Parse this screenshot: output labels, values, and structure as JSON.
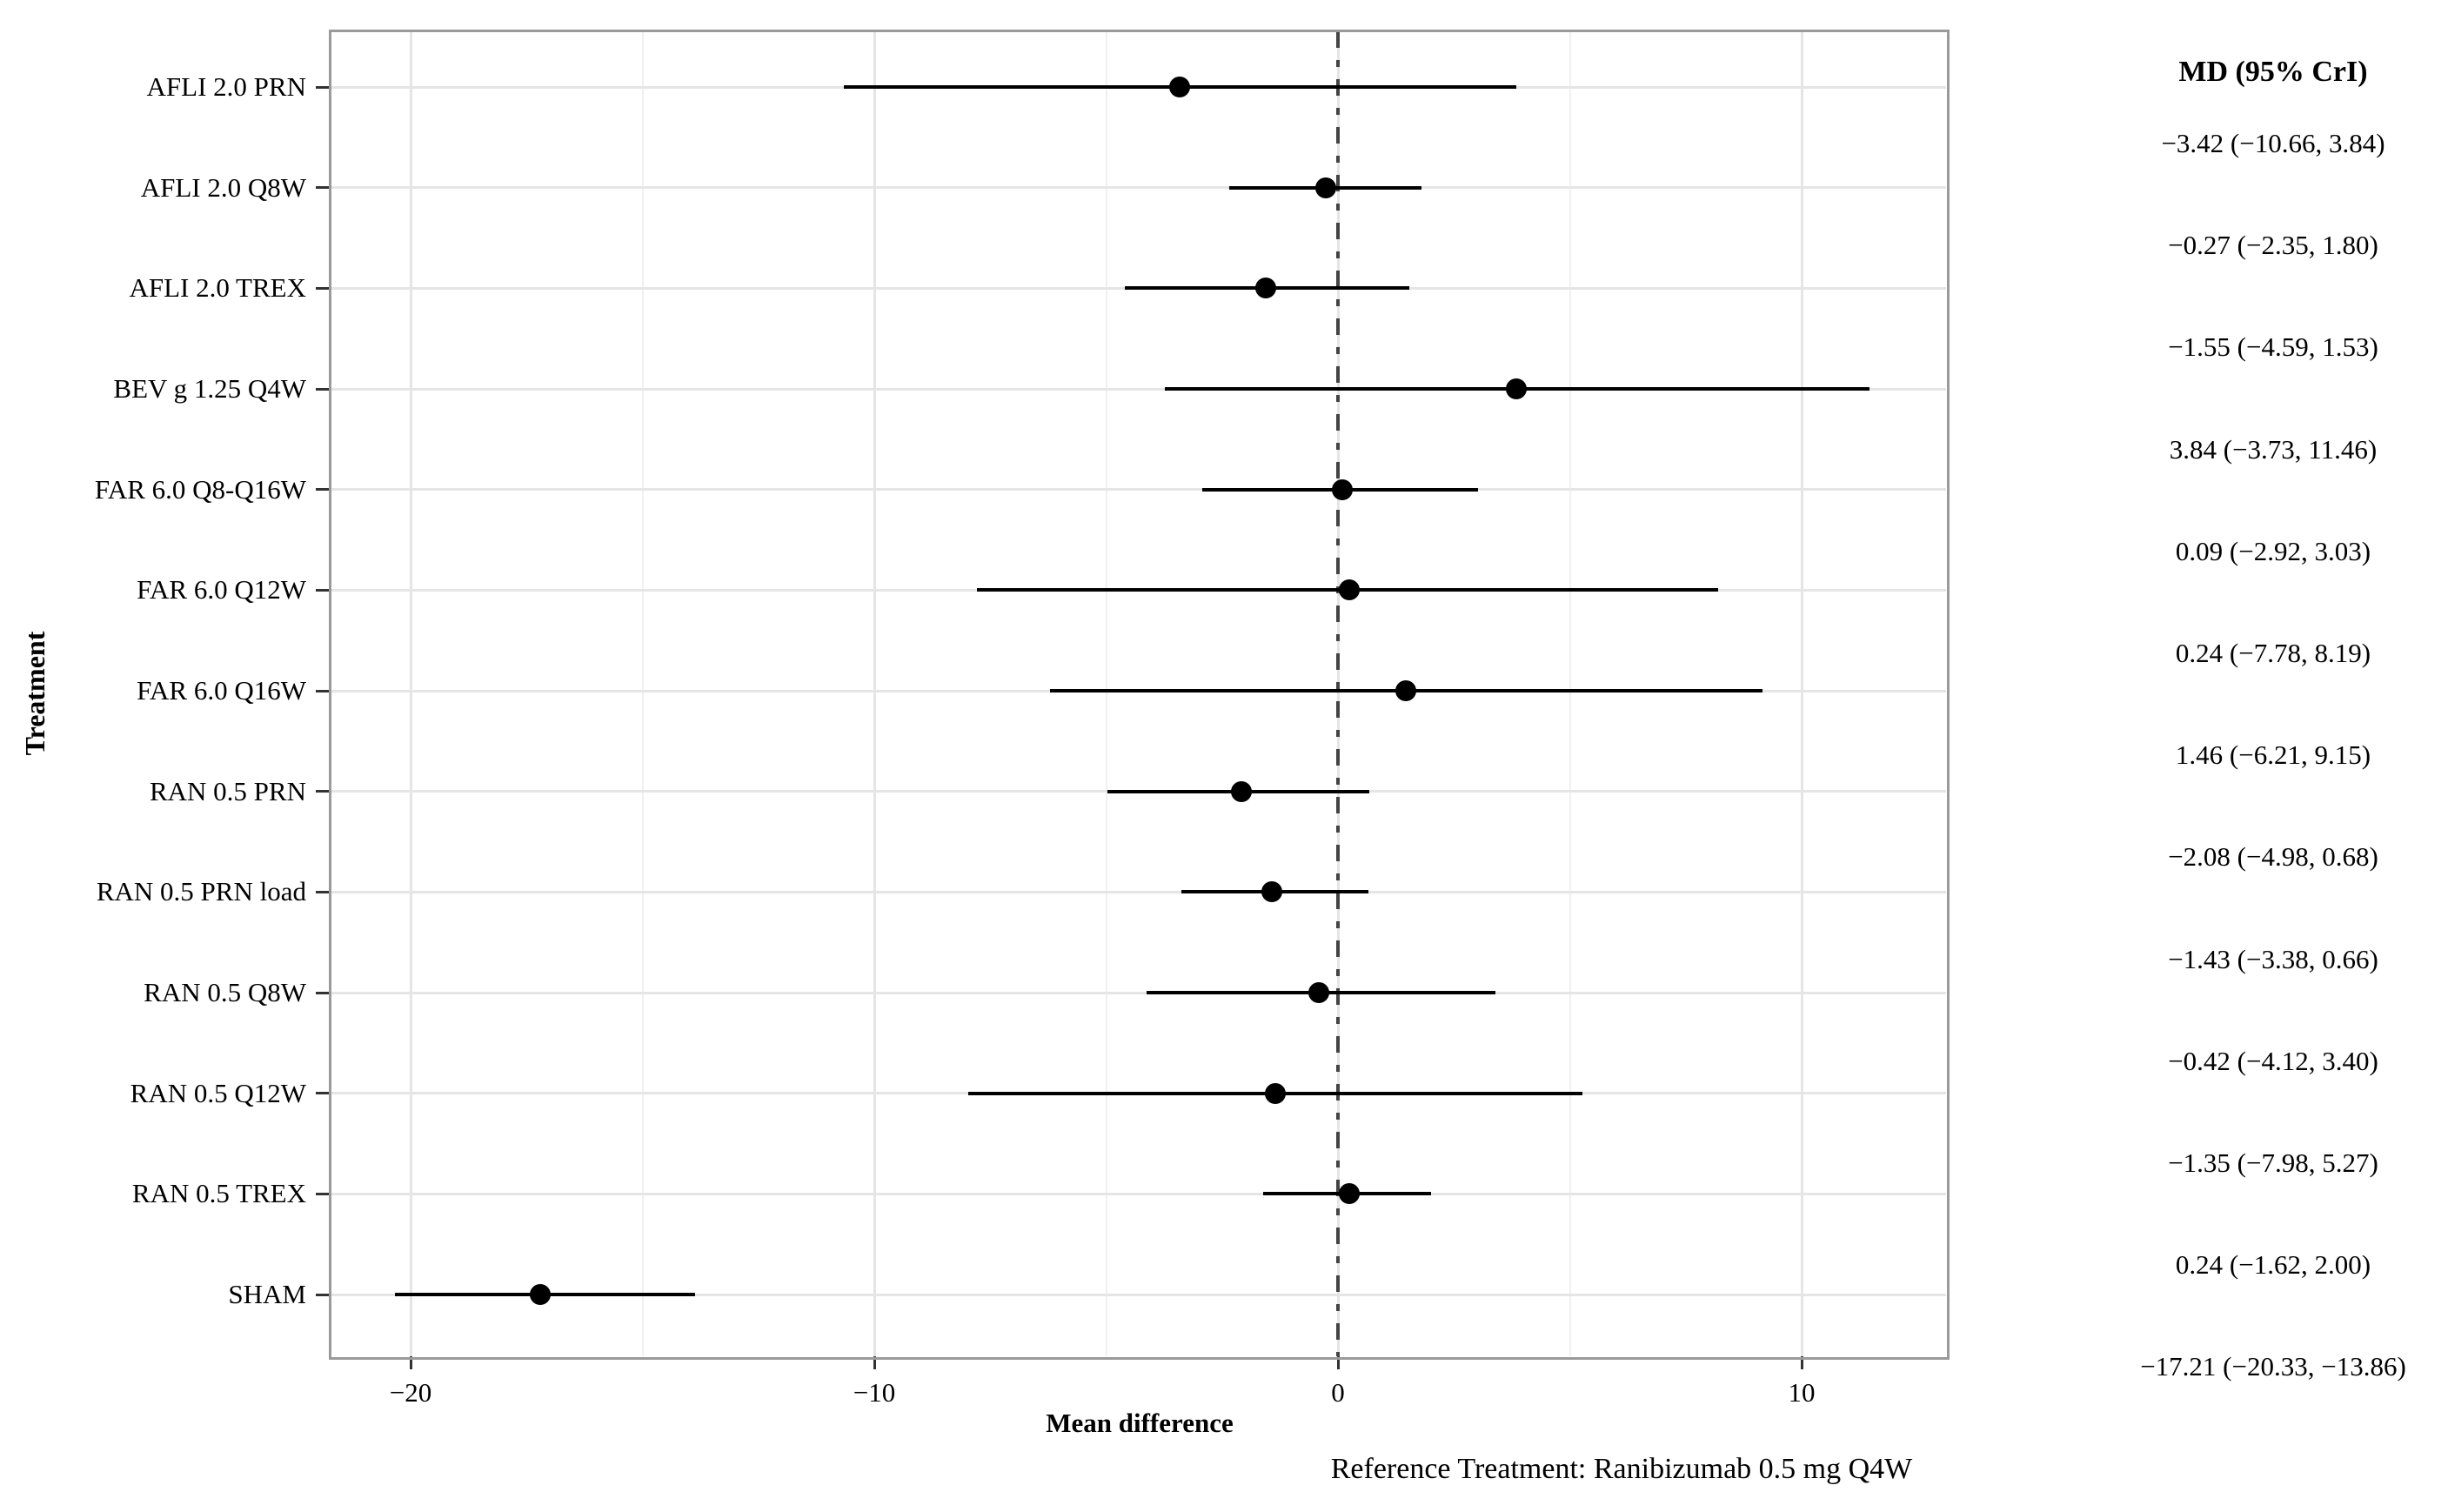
{
  "figure": {
    "y_axis_title": "Treatment",
    "x_axis_title": "Mean difference",
    "right_column_header": "MD (95% CrI)",
    "footnote": "Reference Treatment: Ranibizumab 0.5 mg Q4W"
  },
  "chart_data": {
    "type": "scatter",
    "variant": "forest-plot",
    "title": "",
    "xlabel": "Mean difference",
    "ylabel": "Treatment",
    "right_column_header": "MD (95% CrI)",
    "footnote": "Reference Treatment: Ranibizumab 0.5 mg Q4W",
    "x_ticks": [
      -20,
      -10,
      0,
      10
    ],
    "x_minor_gridlines": [
      -15,
      -5,
      5
    ],
    "xlim": [
      -21.8,
      13.1
    ],
    "reference_line_x": 0,
    "grid": true,
    "legend": "none",
    "categories": [
      "AFLI 2.0 PRN",
      "AFLI 2.0 Q8W",
      "AFLI 2.0 TREX",
      "BEV g 1.25 Q4W",
      "FAR 6.0 Q8-Q16W",
      "FAR 6.0 Q12W",
      "FAR 6.0 Q16W",
      "RAN 0.5 PRN",
      "RAN 0.5 PRN load",
      "RAN 0.5 Q8W",
      "RAN 0.5 Q12W",
      "RAN 0.5 TREX",
      "SHAM"
    ],
    "rows": [
      {
        "treatment": "AFLI 2.0 PRN",
        "md": -3.42,
        "lower": -10.66,
        "upper": 3.84,
        "label": "−3.42 (−10.66, 3.84)"
      },
      {
        "treatment": "AFLI 2.0 Q8W",
        "md": -0.27,
        "lower": -2.35,
        "upper": 1.8,
        "label": "−0.27 (−2.35, 1.80)"
      },
      {
        "treatment": "AFLI 2.0 TREX",
        "md": -1.55,
        "lower": -4.59,
        "upper": 1.53,
        "label": "−1.55 (−4.59, 1.53)"
      },
      {
        "treatment": "BEV g 1.25 Q4W",
        "md": 3.84,
        "lower": -3.73,
        "upper": 11.46,
        "label": "3.84 (−3.73, 11.46)"
      },
      {
        "treatment": "FAR 6.0 Q8-Q16W",
        "md": 0.09,
        "lower": -2.92,
        "upper": 3.03,
        "label": "0.09 (−2.92, 3.03)"
      },
      {
        "treatment": "FAR 6.0 Q12W",
        "md": 0.24,
        "lower": -7.78,
        "upper": 8.19,
        "label": "0.24 (−7.78, 8.19)"
      },
      {
        "treatment": "FAR 6.0 Q16W",
        "md": 1.46,
        "lower": -6.21,
        "upper": 9.15,
        "label": "1.46 (−6.21, 9.15)"
      },
      {
        "treatment": "RAN 0.5 PRN",
        "md": -2.08,
        "lower": -4.98,
        "upper": 0.68,
        "label": "−2.08 (−4.98, 0.68)"
      },
      {
        "treatment": "RAN 0.5 PRN load",
        "md": -1.43,
        "lower": -3.38,
        "upper": 0.66,
        "label": "−1.43 (−3.38, 0.66)"
      },
      {
        "treatment": "RAN 0.5 Q8W",
        "md": -0.42,
        "lower": -4.12,
        "upper": 3.4,
        "label": "−0.42 (−4.12, 3.40)"
      },
      {
        "treatment": "RAN 0.5 Q12W",
        "md": -1.35,
        "lower": -7.98,
        "upper": 5.27,
        "label": "−1.35 (−7.98, 5.27)"
      },
      {
        "treatment": "RAN 0.5 TREX",
        "md": 0.24,
        "lower": -1.62,
        "upper": 2.0,
        "label": "0.24 (−1.62, 2.00)"
      },
      {
        "treatment": "SHAM",
        "md": -17.21,
        "lower": -20.33,
        "upper": -13.86,
        "label": "−17.21 (−20.33, −13.86)"
      }
    ]
  },
  "colors": {
    "marker": "#000000",
    "text": "#000000",
    "grid_major": "#e5e5e5",
    "grid_minor": "#f0f0f0",
    "panel_border": "#9a9a9a",
    "tick": "#333333",
    "reference_line": "#444444",
    "background": "#ffffff"
  }
}
